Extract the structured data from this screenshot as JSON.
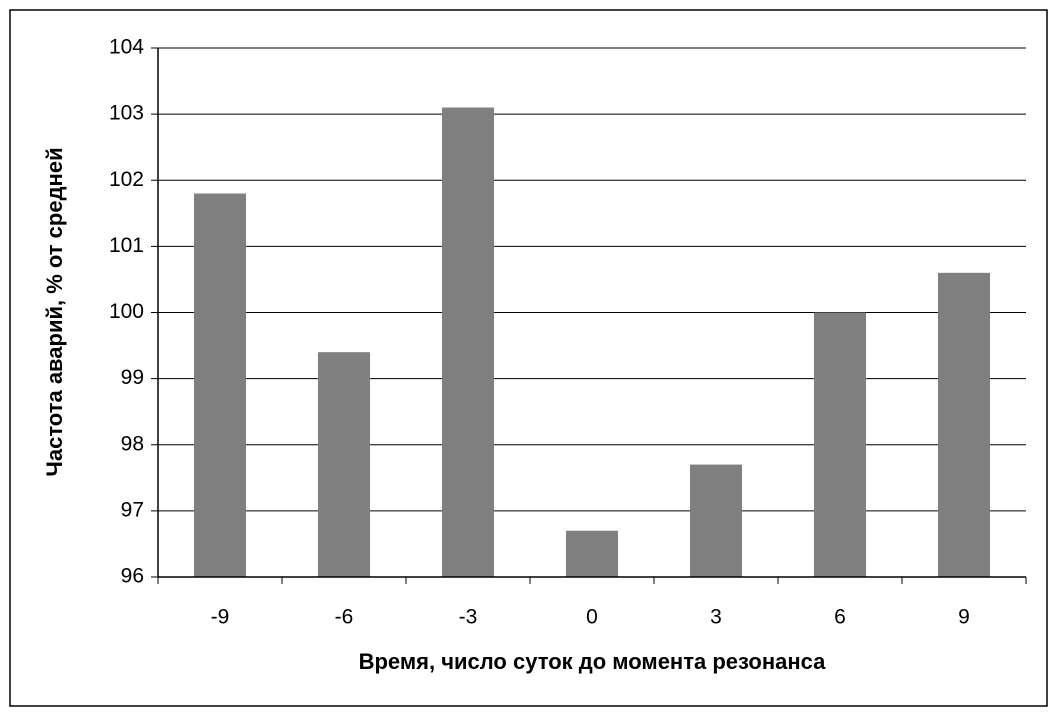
{
  "chart_data": {
    "type": "bar",
    "x_label": "Время, число суток до момента резонанса",
    "y_label": "Частота аварий, % от средней",
    "categories": [
      "-9",
      "-6",
      "-3",
      "0",
      "3",
      "6",
      "9"
    ],
    "values": [
      101.8,
      99.4,
      103.1,
      96.7,
      97.7,
      100.0,
      100.6
    ],
    "color": "#808080",
    "ylim": [
      96,
      104
    ],
    "yticks": [
      96,
      97,
      98,
      99,
      100,
      101,
      102,
      103,
      104
    ],
    "grid": true
  }
}
